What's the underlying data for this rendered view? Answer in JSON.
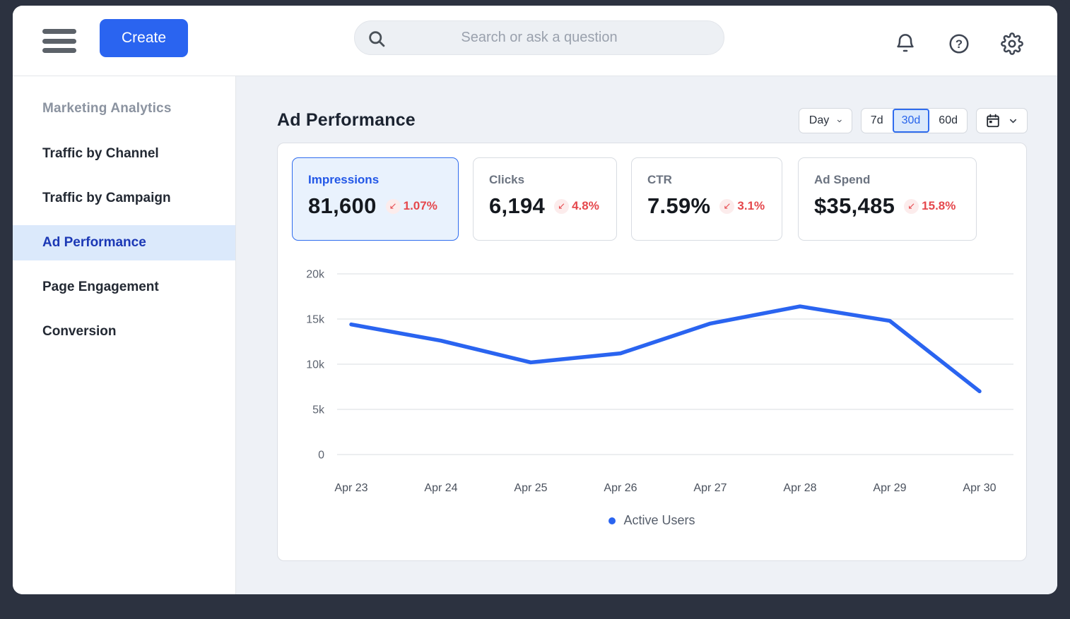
{
  "header": {
    "create_label": "Create",
    "search_placeholder": "Search or ask a question"
  },
  "sidebar": {
    "section_label": "Marketing Analytics",
    "items": [
      {
        "label": "Traffic by Channel",
        "active": false
      },
      {
        "label": "Traffic by Campaign",
        "active": false
      },
      {
        "label": "Ad Performance",
        "active": true
      },
      {
        "label": "Page Engagement",
        "active": false
      },
      {
        "label": "Conversion",
        "active": false
      }
    ]
  },
  "main": {
    "title": "Ad Performance",
    "controls": {
      "interval_label": "Day",
      "ranges": [
        "7d",
        "30d",
        "60d"
      ],
      "selected_range": "30d"
    },
    "kpis": [
      {
        "label": "Impressions",
        "value": "81,600",
        "delta": "1.07%",
        "direction": "down",
        "selected": true
      },
      {
        "label": "Clicks",
        "value": "6,194",
        "delta": "4.8%",
        "direction": "down",
        "selected": false
      },
      {
        "label": "CTR",
        "value": "7.59%",
        "delta": "3.1%",
        "direction": "down",
        "selected": false
      },
      {
        "label": "Ad Spend",
        "value": "$35,485",
        "delta": "15.8%",
        "direction": "down",
        "selected": false
      }
    ]
  },
  "chart_data": {
    "type": "line",
    "title": "",
    "xlabel": "",
    "ylabel": "",
    "categories": [
      "Apr 23",
      "Apr 24",
      "Apr 25",
      "Apr 26",
      "Apr 27",
      "Apr 28",
      "Apr 29",
      "Apr 30"
    ],
    "series": [
      {
        "name": "Active Users",
        "color": "#2a64f0",
        "values": [
          14400,
          12600,
          10200,
          11200,
          14500,
          16400,
          14800,
          7000
        ]
      }
    ],
    "ylim": [
      0,
      20000
    ],
    "yticks": [
      {
        "value": 0,
        "label": "0"
      },
      {
        "value": 5000,
        "label": "5k"
      },
      {
        "value": 10000,
        "label": "10k"
      },
      {
        "value": 15000,
        "label": "15k"
      },
      {
        "value": 20000,
        "label": "20k"
      }
    ],
    "grid": true,
    "legend_position": "bottom"
  },
  "icons": {
    "trend_down_glyph": "↙",
    "question_glyph": "?"
  },
  "colors": {
    "primary_blue": "#2a64f0",
    "active_nav_bg": "#dbe9fb",
    "active_nav_text": "#1b38b5",
    "negative_red": "#e5484d",
    "frame_dark": "#2c3240",
    "content_bg": "#eef1f6"
  }
}
